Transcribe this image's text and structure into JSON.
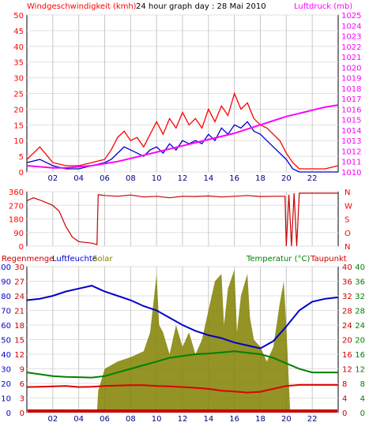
{
  "chart_data": [
    {
      "type": "line",
      "title": "24 hour graph day : 28 Mai 2010",
      "left_axis_label": "Windgeschwindigkeit (kmh)",
      "right_axis_label": "Luftdruck (mb)",
      "left_ticks": [
        "0",
        "5",
        "10",
        "15",
        "20",
        "25",
        "30",
        "35",
        "40",
        "45",
        "50"
      ],
      "right_ticks": [
        "1010",
        "1011",
        "1012",
        "1013",
        "1014",
        "1015",
        "1016",
        "1017",
        "1018",
        "1019",
        "1020",
        "1021",
        "1022",
        "1023",
        "1024",
        "1025"
      ],
      "ylim_left": [
        0,
        50
      ],
      "ylim_right": [
        1010,
        1025
      ],
      "xlim": [
        0,
        24
      ],
      "series": [
        {
          "name": "Windgeschwindigkeit",
          "color": "#ff0000",
          "axis": "left",
          "x": [
            0,
            1,
            2,
            3,
            4,
            5,
            6,
            6.5,
            7,
            7.5,
            8,
            8.5,
            9,
            9.5,
            10,
            10.5,
            11,
            11.5,
            12,
            12.5,
            13,
            13.5,
            14,
            14.5,
            15,
            15.5,
            16,
            16.5,
            17,
            17.5,
            18,
            18.5,
            19,
            19.5,
            20,
            20.5,
            21,
            21.5,
            22,
            23,
            24
          ],
          "y": [
            4,
            8,
            3,
            2,
            2,
            3,
            4,
            7,
            11,
            13,
            10,
            11,
            8,
            12,
            16,
            12,
            17,
            14,
            19,
            15,
            17,
            14,
            20,
            16,
            21,
            18,
            25,
            20,
            22,
            17,
            15,
            14,
            12,
            10,
            6,
            3,
            1,
            1,
            1,
            1,
            2
          ]
        },
        {
          "name": "Windgeschwindigkeit Mittel",
          "color": "#0000cc",
          "axis": "left",
          "x": [
            0,
            1,
            2,
            3,
            4,
            5,
            6,
            6.5,
            7,
            7.5,
            8,
            8.5,
            9,
            9.5,
            10,
            10.5,
            11,
            11.5,
            12,
            12.5,
            13,
            13.5,
            14,
            14.5,
            15,
            15.5,
            16,
            16.5,
            17,
            17.5,
            18,
            18.5,
            19,
            19.5,
            20,
            20.5,
            21,
            21.5,
            22,
            23,
            24
          ],
          "y": [
            3,
            4,
            2,
            1,
            1,
            2,
            3,
            4,
            6,
            8,
            7,
            6,
            5,
            7,
            8,
            6,
            9,
            7,
            10,
            9,
            10,
            9,
            12,
            10,
            14,
            12,
            15,
            14,
            16,
            13,
            12,
            10,
            8,
            6,
            4,
            1,
            0,
            0,
            0,
            0,
            0
          ]
        },
        {
          "name": "Luftdruck",
          "color": "#ff00ff",
          "axis": "right",
          "x": [
            0,
            1,
            2,
            3,
            4,
            5,
            6,
            7,
            8,
            9,
            10,
            11,
            12,
            13,
            14,
            15,
            16,
            17,
            18,
            19,
            20,
            21,
            22,
            23,
            24
          ],
          "y": [
            1010.6,
            1010.5,
            1010.4,
            1010.4,
            1010.5,
            1010.6,
            1010.8,
            1011.0,
            1011.3,
            1011.6,
            1011.9,
            1012.2,
            1012.5,
            1012.8,
            1013.1,
            1013.4,
            1013.7,
            1014.1,
            1014.5,
            1014.9,
            1015.3,
            1015.6,
            1015.9,
            1016.2,
            1016.4
          ]
        }
      ],
      "x_ticks": [
        "02",
        "04",
        "06",
        "08",
        "10",
        "12",
        "14",
        "16",
        "18",
        "20",
        "22"
      ],
      "grid": true
    },
    {
      "type": "line",
      "left_ticks": [
        "0",
        "90",
        "180",
        "270",
        "360"
      ],
      "right_ticks": [
        "N",
        "O",
        "S",
        "W",
        "N"
      ],
      "ylim": [
        0,
        360
      ],
      "xlim": [
        0,
        24
      ],
      "series": [
        {
          "name": "Windrichtung",
          "color": "#cc0000",
          "x": [
            0,
            0.5,
            1,
            2,
            2.5,
            3,
            3.5,
            4,
            5,
            5.4,
            5.5,
            6,
            7,
            8,
            9,
            10,
            11,
            12,
            13,
            14,
            15,
            16,
            17,
            18,
            19,
            19.9,
            20,
            20.2,
            20.4,
            20.6,
            20.8,
            21,
            21.5,
            22,
            23,
            24
          ],
          "y": [
            300,
            320,
            305,
            270,
            230,
            130,
            60,
            30,
            20,
            10,
            340,
            335,
            330,
            338,
            325,
            330,
            320,
            330,
            328,
            332,
            325,
            330,
            335,
            328,
            330,
            330,
            0,
            340,
            0,
            350,
            0,
            350,
            350,
            350,
            350,
            350
          ]
        }
      ],
      "x_ticks": [],
      "grid": true
    },
    {
      "type": "line",
      "top_left_labels": [
        {
          "text": "Regenmenge",
          "color": "#cc0000"
        },
        {
          "text": "Luftfeuchte",
          "color": "#0000cc"
        },
        {
          "text": "Solar",
          "color": "#808000"
        }
      ],
      "top_right_labels": [
        {
          "text": "Temperatur (°C)",
          "color": "#008000"
        },
        {
          "text": "Taupunkt",
          "color": "#cc0000"
        }
      ],
      "left_ticks_outer": [
        "0",
        "10",
        "20",
        "30",
        "40",
        "50",
        "60",
        "70",
        "80",
        "90",
        "100"
      ],
      "left_ticks_inner": [
        "0",
        "3",
        "6",
        "9",
        "12",
        "15",
        "18",
        "21",
        "24",
        "27",
        "30"
      ],
      "right_ticks_inner": [
        "0",
        "4",
        "8",
        "12",
        "16",
        "20",
        "24",
        "28",
        "32",
        "36",
        "40"
      ],
      "right_ticks_outer": [
        "0",
        "4",
        "8",
        "12",
        "16",
        "20",
        "24",
        "28",
        "32",
        "36",
        "40"
      ],
      "ylim_humidity": [
        0,
        100
      ],
      "ylim_temperature": [
        0,
        40
      ],
      "xlim": [
        0,
        24
      ],
      "series": [
        {
          "name": "Luftfeuchte",
          "color": "#0000cc",
          "axis": "humidity",
          "x": [
            0,
            1,
            2,
            3,
            4,
            5,
            6,
            7,
            8,
            9,
            10,
            11,
            12,
            13,
            14,
            15,
            16,
            17,
            18,
            19,
            20,
            21,
            22,
            23,
            24
          ],
          "y": [
            77,
            78,
            80,
            83,
            85,
            87,
            83,
            80,
            77,
            73,
            70,
            65,
            60,
            56,
            53,
            51,
            48,
            46,
            44,
            49,
            59,
            70,
            76,
            78,
            79
          ]
        },
        {
          "name": "Temperatur",
          "color": "#008000",
          "axis": "temperature",
          "x": [
            0,
            1,
            2,
            3,
            4,
            5,
            6,
            7,
            8,
            9,
            10,
            11,
            12,
            13,
            14,
            15,
            16,
            17,
            18,
            19,
            20,
            21,
            22,
            23,
            24
          ],
          "y": [
            11,
            10.5,
            10,
            9.8,
            9.7,
            9.6,
            10,
            11,
            12,
            13,
            14,
            15,
            15.5,
            16,
            16.2,
            16.5,
            16.8,
            16.4,
            16,
            15,
            13.5,
            12,
            11,
            11,
            11
          ]
        },
        {
          "name": "Taupunkt",
          "color": "#dd0000",
          "axis": "temperature",
          "x": [
            0,
            1,
            2,
            3,
            4,
            5,
            6,
            7,
            8,
            9,
            10,
            11,
            12,
            13,
            14,
            15,
            16,
            17,
            18,
            19,
            20,
            21,
            22,
            23,
            24
          ],
          "y": [
            7,
            7.1,
            7.2,
            7.3,
            7,
            7.1,
            7.3,
            7.4,
            7.5,
            7.5,
            7.3,
            7.2,
            7.0,
            6.8,
            6.5,
            6,
            5.8,
            5.5,
            5.7,
            6.5,
            7.3,
            7.6,
            7.6,
            7.6,
            7.6
          ]
        },
        {
          "name": "Solar",
          "color": "#808000",
          "axis": "humidity",
          "filled": true,
          "x": [
            0,
            5.4,
            5.5,
            6,
            7,
            8,
            9,
            9.5,
            10,
            10.2,
            10.5,
            11,
            11.5,
            12,
            12.5,
            13,
            13.5,
            14,
            14.5,
            15,
            15.2,
            15.5,
            16,
            16.2,
            16.5,
            17,
            17.2,
            17.5,
            18,
            18.5,
            19,
            19.5,
            19.8,
            20,
            20.3,
            24
          ],
          "y": [
            0,
            0,
            15,
            30,
            35,
            38,
            42,
            55,
            95,
            60,
            55,
            40,
            60,
            45,
            55,
            40,
            50,
            70,
            90,
            95,
            60,
            85,
            98,
            55,
            80,
            95,
            65,
            50,
            45,
            35,
            45,
            75,
            90,
            60,
            0,
            0
          ]
        },
        {
          "name": "Regenmenge",
          "color": "#cc0000",
          "axis": "humidity",
          "x": [
            0,
            24
          ],
          "y": [
            0,
            0
          ]
        }
      ],
      "x_ticks": [
        "02",
        "04",
        "06",
        "08",
        "10",
        "12",
        "14",
        "16",
        "18",
        "20",
        "22"
      ],
      "grid": true
    }
  ]
}
